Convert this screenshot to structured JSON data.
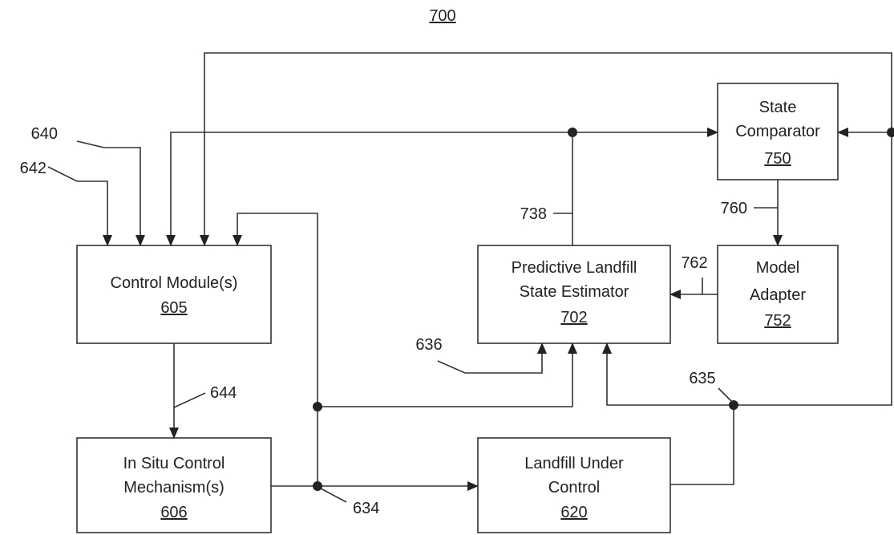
{
  "figure_number": "700",
  "blocks": {
    "control_module": {
      "lines": [
        "Control Module(s)"
      ],
      "ref": "605"
    },
    "in_situ": {
      "lines": [
        "In Situ Control",
        "Mechanism(s)"
      ],
      "ref": "606"
    },
    "landfill": {
      "lines": [
        "Landfill Under",
        "Control"
      ],
      "ref": "620"
    },
    "estimator": {
      "lines": [
        "Predictive Landfill",
        "State Estimator"
      ],
      "ref": "702"
    },
    "comparator": {
      "lines": [
        "State",
        "Comparator"
      ],
      "ref": "750"
    },
    "adapter": {
      "lines": [
        "Model",
        "Adapter"
      ],
      "ref": "752"
    }
  },
  "signals": {
    "s640": "640",
    "s642": "642",
    "s644": "644",
    "s634": "634",
    "s635": "635",
    "s636": "636",
    "s738": "738",
    "s760": "760",
    "s762": "762"
  }
}
